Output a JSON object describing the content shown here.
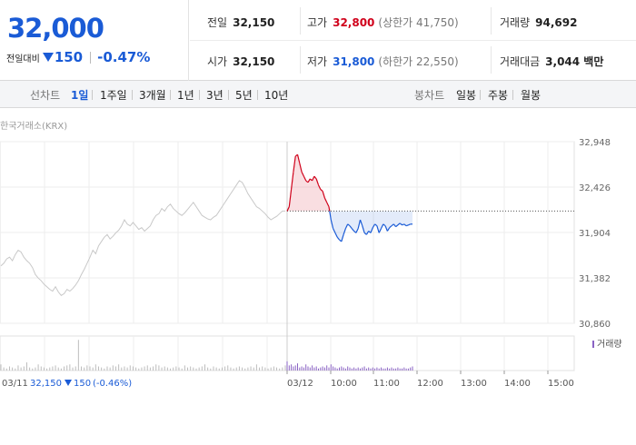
{
  "summary": {
    "price": "32,000",
    "change_label": "전일대비",
    "change_amount": "150",
    "change_percent": "-0.47%",
    "stats": {
      "prev_close": {
        "label": "전일",
        "value": "32,150"
      },
      "high": {
        "label": "고가",
        "value": "32,800",
        "sub": "(상한가 41,750)"
      },
      "volume": {
        "label": "거래량",
        "value": "94,692"
      },
      "open": {
        "label": "시가",
        "value": "32,150"
      },
      "low": {
        "label": "저가",
        "value": "31,800",
        "sub": "(하한가 22,550)"
      },
      "trade_value": {
        "label": "거래대금",
        "value": "3,044 백만"
      }
    }
  },
  "tabs": {
    "line_header": "선차트",
    "line_items": [
      "1일",
      "1주일",
      "3개월",
      "1년",
      "3년",
      "5년",
      "10년"
    ],
    "active": "1일",
    "candle_header": "봉차트",
    "candle_items": [
      "일봉",
      "주봉",
      "월봉"
    ]
  },
  "source": "한국거래소(KRX)",
  "colors": {
    "blue": "#1a5bd6",
    "red": "#d0021b",
    "line_prev": "#c8c8c8",
    "volume": "#8a63c4"
  },
  "chart_data": {
    "type": "line",
    "title": "",
    "ylim": [
      30860,
      32948
    ],
    "y_ticks": [
      "32,948",
      "32,426",
      "31,904",
      "31,382",
      "30,860"
    ],
    "x_labels": [
      "03/12",
      "10:00",
      "11:00",
      "12:00",
      "13:00",
      "14:00",
      "15:00"
    ],
    "reference_price": 32150,
    "legend": "거래량",
    "prev_day_caption": {
      "date": "03/11",
      "price": "32,150",
      "change": "150",
      "percent": "(-0.46%)"
    },
    "series": [
      {
        "name": "",
        "values": [
          31520,
          31550,
          31600,
          31620,
          31580,
          31650,
          31700,
          31680,
          31620,
          31580,
          31550,
          31500,
          31420,
          31380,
          31350,
          31310,
          31280,
          31250,
          31230,
          31280,
          31220,
          31180,
          31200,
          31250,
          31230,
          31260,
          31300,
          31350,
          31420,
          31480,
          31550,
          31620,
          31700,
          31660,
          31750,
          31800,
          31850,
          31880,
          31830,
          31860,
          31900,
          31930,
          31980,
          32050,
          32000,
          31980,
          32020,
          31980,
          31940,
          31960,
          31920,
          31950,
          31980,
          32050,
          32100,
          32120,
          32180,
          32150,
          32200,
          32230,
          32180,
          32150,
          32120,
          32100,
          32130,
          32170,
          32210,
          32250,
          32200,
          32150,
          32100,
          32080,
          32060,
          32050,
          32080,
          32100,
          32150,
          32200,
          32250,
          32300,
          32350,
          32400,
          32450,
          32500,
          32480,
          32420,
          32350,
          32300,
          32250,
          32200,
          32180,
          32150,
          32120,
          32080,
          32050,
          32070,
          32090,
          32120,
          32150,
          32150
        ]
      },
      {
        "name": "",
        "values": [
          32150,
          32200,
          32400,
          32600,
          32780,
          32800,
          32700,
          32600,
          32550,
          32500,
          32480,
          32520,
          32500,
          32550,
          32520,
          32450,
          32400,
          32380,
          32300,
          32250,
          32200,
          32050,
          31950,
          31900,
          31850,
          31820,
          31800,
          31880,
          31950,
          32000,
          31980,
          31950,
          31920,
          31900,
          31950,
          32050,
          31980,
          31900,
          31880,
          31920,
          31900,
          31960,
          32000,
          31980,
          31900,
          31950,
          32000,
          31980,
          31920,
          31960,
          31980,
          32000,
          31970,
          31990,
          32010,
          31990,
          32000,
          31980,
          31990,
          32000,
          32000
        ]
      }
    ],
    "volumes_prev": [
      6,
      3,
      2,
      4,
      3,
      2,
      5,
      3,
      4,
      8,
      3,
      2,
      3,
      6,
      4,
      3,
      2,
      3,
      4,
      5,
      3,
      2,
      4,
      5,
      6,
      3,
      4,
      30,
      4,
      3,
      5,
      4,
      3,
      6,
      4,
      3,
      2,
      4,
      3,
      5,
      4,
      6,
      3,
      4,
      3,
      5,
      4,
      3,
      2,
      3,
      4,
      5,
      3,
      4,
      6,
      5,
      3,
      4,
      3,
      2,
      3,
      4,
      3,
      2,
      5,
      3,
      4,
      3,
      2,
      3,
      4,
      6,
      3,
      2,
      4,
      3,
      2,
      3,
      4,
      5,
      3,
      2,
      3,
      4,
      3,
      2,
      3,
      4,
      3,
      6,
      3,
      4,
      3,
      2,
      3,
      4,
      3,
      2,
      3,
      5
    ],
    "volumes_today": [
      9,
      5,
      6,
      4,
      5,
      7,
      3,
      4,
      3,
      6,
      4,
      3,
      5,
      3,
      4,
      2,
      3,
      4,
      3,
      5,
      3,
      6,
      4,
      3,
      2,
      3,
      4,
      3,
      2,
      4,
      3,
      2,
      3,
      2,
      3,
      2,
      3,
      4,
      2,
      3,
      2,
      3,
      2,
      3,
      2,
      3,
      2,
      2,
      3,
      2,
      3,
      2,
      2,
      3,
      2,
      2,
      3,
      2,
      2,
      3,
      4
    ]
  }
}
